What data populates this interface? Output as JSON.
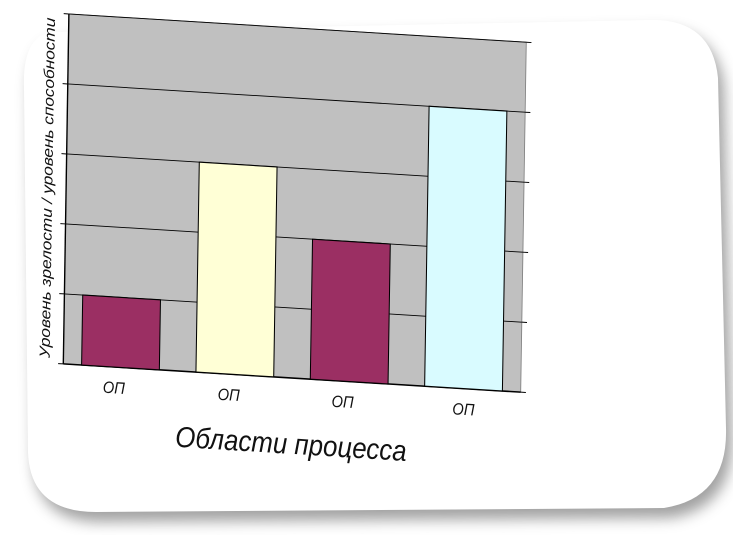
{
  "chart_data": {
    "type": "bar",
    "categories": [
      "ОП",
      "ОП",
      "ОП",
      "ОП"
    ],
    "values": [
      1,
      3,
      2,
      4
    ],
    "bar_colors": [
      "#9b2f63",
      "#ffffd6",
      "#9b2f63",
      "#d9fbff"
    ],
    "title": "",
    "xlabel": "Области процесса",
    "ylabel": "Уровень зрелости / уровень способности",
    "ylim": [
      0,
      5
    ],
    "grid": true,
    "legend": "none",
    "plot_background": "#c0c0c0"
  }
}
